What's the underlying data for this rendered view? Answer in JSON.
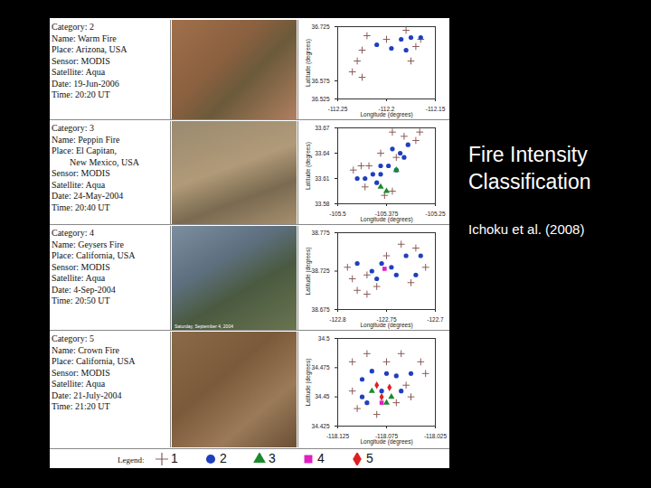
{
  "title": "Fire Intensity Classification",
  "citation": "Ichoku et al. (2008)",
  "legend_title": "Legend:",
  "legend_entries": [
    {
      "name": "1",
      "color": "#8b5a5a",
      "marker": "plus"
    },
    {
      "name": "2",
      "color": "#1f3fbf",
      "marker": "circle"
    },
    {
      "name": "3",
      "color": "#1a8a2a",
      "marker": "triangle"
    },
    {
      "name": "4",
      "color": "#e020c0",
      "marker": "square"
    },
    {
      "name": "5",
      "color": "#e02020",
      "marker": "diamond"
    }
  ],
  "chart_data": [
    {
      "type": "scatter",
      "annotations": [
        "Category: 2",
        "Name: Warm Fire",
        "Place: Arizona, USA",
        "Sensor: MODIS",
        "Satellite: Aqua",
        "Date: 19-Jun-2006",
        "Time: 20:20 UT"
      ],
      "xlabel": "Longitude (degrees)",
      "ylabel": "Latitude (degrees)",
      "xlim": [
        -112.25,
        -112.15
      ],
      "xticks": [
        -112.25,
        -112.2,
        -112.15
      ],
      "ylim": [
        36.525,
        36.725
      ],
      "yticks": [
        36.525,
        36.575,
        36.725
      ],
      "series": [
        {
          "name": "1",
          "color": "#8b5a5a",
          "marker": "plus",
          "x": [
            -112.22,
            -112.225,
            -112.23,
            -112.235,
            -112.225,
            -112.2,
            -112.18,
            -112.165,
            -112.17,
            -112.175
          ],
          "y": [
            36.7,
            36.66,
            36.63,
            36.6,
            36.585,
            36.69,
            36.715,
            36.69,
            36.67,
            36.63
          ]
        },
        {
          "name": "2",
          "color": "#1f3fbf",
          "marker": "circle",
          "x": [
            -112.21,
            -112.195,
            -112.185,
            -112.18,
            -112.175,
            -112.165
          ],
          "y": [
            36.675,
            36.665,
            36.69,
            36.66,
            36.695,
            36.695
          ]
        }
      ]
    },
    {
      "type": "scatter",
      "annotations": [
        "Category: 3",
        "Name: Peppin Fire",
        "Place: El Capitan,",
        "        New Mexico, USA",
        "Sensor: MODIS",
        "Satellite: Aqua",
        "Date: 24-May-2004",
        "Time: 20:40 UT"
      ],
      "xlabel": "Longitude (degrees)",
      "ylabel": "Latitude (degrees)",
      "xlim": [
        -105.5,
        -105.25
      ],
      "xticks": [
        -105.5,
        -105.375,
        -105.25
      ],
      "ylim": [
        33.58,
        33.67
      ],
      "yticks": [
        33.58,
        33.61,
        33.64,
        33.67
      ],
      "series": [
        {
          "name": "1",
          "color": "#8b5a5a",
          "marker": "plus",
          "x": [
            -105.46,
            -105.44,
            -105.42,
            -105.39,
            -105.36,
            -105.33,
            -105.3,
            -105.29,
            -105.43,
            -105.38,
            -105.36,
            -105.35
          ],
          "y": [
            33.62,
            33.625,
            33.625,
            33.64,
            33.665,
            33.66,
            33.655,
            33.665,
            33.6,
            33.59,
            33.595,
            33.635
          ]
        },
        {
          "name": "2",
          "color": "#1f3fbf",
          "marker": "circle",
          "x": [
            -105.45,
            -105.43,
            -105.41,
            -105.4,
            -105.39,
            -105.37,
            -105.36,
            -105.35,
            -105.34,
            -105.33,
            -105.32,
            -105.39
          ],
          "y": [
            33.61,
            33.61,
            33.615,
            33.605,
            33.625,
            33.625,
            33.645,
            33.62,
            33.64,
            33.635,
            33.65,
            33.615
          ]
        },
        {
          "name": "3",
          "color": "#1a8a2a",
          "marker": "triangle",
          "x": [
            -105.39,
            -105.375,
            -105.35
          ],
          "y": [
            33.6,
            33.595,
            33.62
          ]
        }
      ]
    },
    {
      "type": "scatter",
      "annotations": [
        "Category: 4",
        "Name: Geysers Fire",
        "Place: California, USA",
        "Sensor: MODIS",
        "Satellite: Aqua",
        "Date: 4-Sep-2004",
        "Time: 20:50 UT"
      ],
      "image_caption": "Saturday, September 4, 2004",
      "xlabel": "Longitude (degrees)",
      "ylabel": "Latitude (degrees)",
      "xlim": [
        -122.8,
        -122.7
      ],
      "xticks": [
        -122.8,
        -122.75,
        -122.7
      ],
      "ylim": [
        38.675,
        38.775
      ],
      "yticks": [
        38.675,
        38.725,
        38.775
      ],
      "series": [
        {
          "name": "1",
          "color": "#8b5a5a",
          "marker": "plus",
          "x": [
            -122.79,
            -122.785,
            -122.78,
            -122.77,
            -122.76,
            -122.75,
            -122.735,
            -122.72,
            -122.71,
            -122.725,
            -122.77
          ],
          "y": [
            38.73,
            38.715,
            38.7,
            38.72,
            38.705,
            38.745,
            38.76,
            38.755,
            38.73,
            38.71,
            38.695
          ]
        },
        {
          "name": "2",
          "color": "#1f3fbf",
          "marker": "circle",
          "x": [
            -122.78,
            -122.765,
            -122.755,
            -122.745,
            -122.73,
            -122.715,
            -122.74,
            -122.72,
            -122.76
          ],
          "y": [
            38.735,
            38.725,
            38.735,
            38.73,
            38.745,
            38.745,
            38.72,
            38.72,
            38.715
          ]
        },
        {
          "name": "4",
          "color": "#e020c0",
          "marker": "square",
          "x": [
            -122.752
          ],
          "y": [
            38.728
          ]
        }
      ]
    },
    {
      "type": "scatter",
      "annotations": [
        "Category: 5",
        "Name: Crown Fire",
        "Place: California, USA",
        "Sensor: MODIS",
        "Satellite: Aqua",
        "Date: 21-July-2004",
        "Time: 21:20 UT"
      ],
      "xlabel": "Longitude (degrees)",
      "ylabel": "Latitude (degrees)",
      "xlim": [
        -118.125,
        -118.025
      ],
      "xticks": [
        -118.125,
        -118.075,
        -118.025
      ],
      "ylim": [
        34.425,
        34.5
      ],
      "yticks": [
        34.425,
        34.45,
        34.475,
        34.5
      ],
      "series": [
        {
          "name": "1",
          "color": "#8b5a5a",
          "marker": "plus",
          "x": [
            -118.11,
            -118.095,
            -118.075,
            -118.06,
            -118.04,
            -118.035,
            -118.11,
            -118.105,
            -118.085,
            -118.065,
            -118.05,
            -118.055
          ],
          "y": [
            34.48,
            34.487,
            34.48,
            34.487,
            34.48,
            34.47,
            34.455,
            34.44,
            34.435,
            34.445,
            34.45,
            34.46
          ]
        },
        {
          "name": "2",
          "color": "#1f3fbf",
          "marker": "circle",
          "x": [
            -118.1,
            -118.09,
            -118.075,
            -118.065,
            -118.05,
            -118.1,
            -118.08,
            -118.06,
            -118.095
          ],
          "y": [
            34.465,
            34.472,
            34.47,
            34.468,
            34.47,
            34.45,
            34.455,
            34.455,
            34.445
          ]
        },
        {
          "name": "3",
          "color": "#1a8a2a",
          "marker": "triangle",
          "x": [
            -118.09,
            -118.07,
            -118.075
          ],
          "y": [
            34.455,
            34.45,
            34.445
          ]
        },
        {
          "name": "4",
          "color": "#e020c0",
          "marker": "square",
          "x": [
            -118.08
          ],
          "y": [
            34.445
          ]
        },
        {
          "name": "5",
          "color": "#e02020",
          "marker": "diamond",
          "x": [
            -118.085,
            -118.072,
            -118.08
          ],
          "y": [
            34.46,
            34.458,
            34.45
          ]
        }
      ]
    }
  ]
}
